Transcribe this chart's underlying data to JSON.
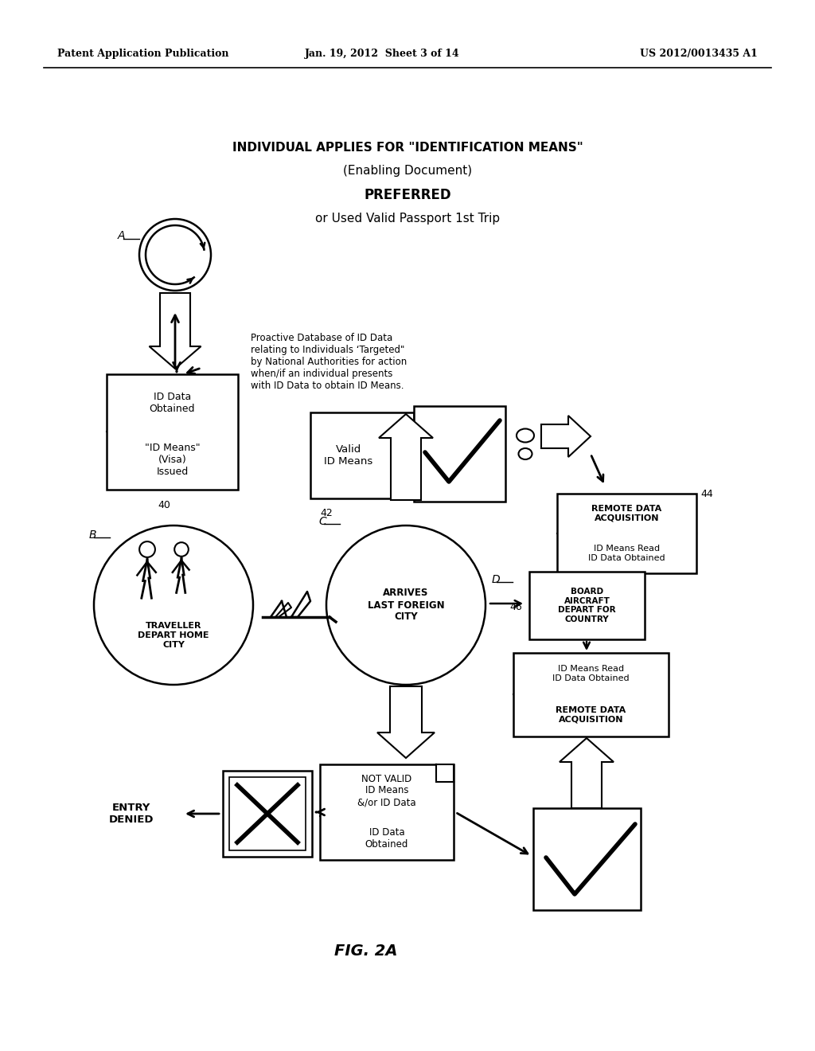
{
  "bg_color": "#ffffff",
  "header_left": "Patent Application Publication",
  "header_mid": "Jan. 19, 2012  Sheet 3 of 14",
  "header_right": "US 2012/0013435 A1",
  "title_line1": "INDIVIDUAL APPLIES FOR \"IDENTIFICATION MEANS\"",
  "title_line2": "(Enabling Document)",
  "title_line3": "PREFERRED",
  "title_line4": "or Used Valid Passport 1st Trip",
  "fig_label": "FIG. 2A",
  "proactive_text": "Proactive Database of ID Data\nrelating to Individuals ‘Targeted\"\nby National Authorities for action\nwhen/if an individual presents\nwith ID Data to obtain ID Means.",
  "label40": "40",
  "label42": "42",
  "label44": "44",
  "label46": "46",
  "label_A": "A",
  "label_B": "B",
  "label_C": "C",
  "label_D": "D"
}
